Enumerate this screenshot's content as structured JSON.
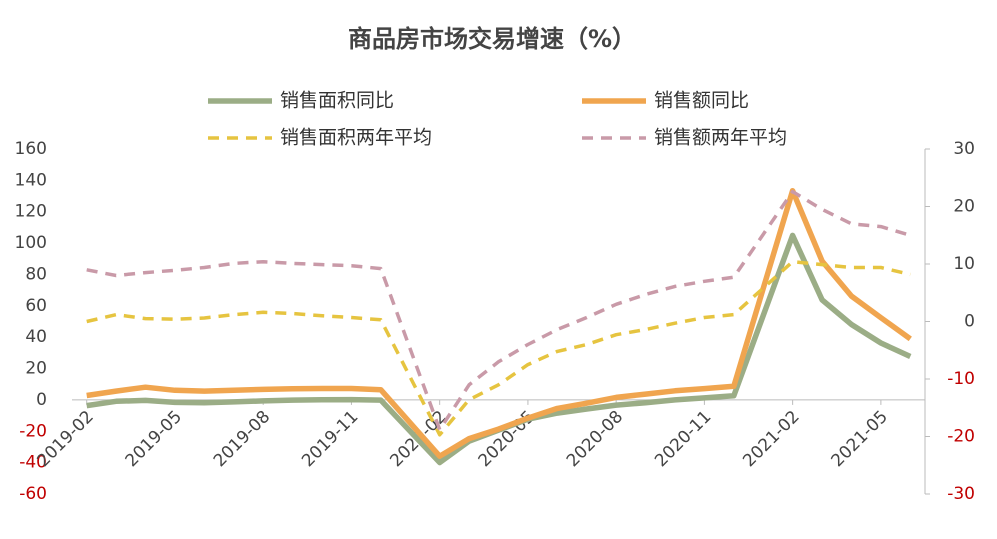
{
  "chart_data": {
    "type": "line",
    "title": "商品房市场交易增速（%）",
    "categories": [
      "2019-02",
      null,
      null,
      "2019-05",
      null,
      null,
      "2019-08",
      null,
      null,
      "2019-11",
      null,
      null,
      "2020-02",
      null,
      null,
      "2020-05",
      null,
      null,
      "2020-08",
      null,
      null,
      "2020-11",
      null,
      null,
      "2021-02",
      null,
      null,
      "2021-05",
      null
    ],
    "series": [
      {
        "name": "销售面积同比",
        "color": "#9bad86",
        "dash": false,
        "values": [
          -3.6,
          -0.9,
          -0.3,
          -1.6,
          -1.8,
          -1.3,
          -0.6,
          -0.1,
          0.1,
          0.2,
          -0.1,
          null,
          -39.9,
          -26.3,
          -19.3,
          -12.3,
          -8.4,
          -5.8,
          -3.3,
          -1.8,
          0.0,
          1.3,
          2.6,
          null,
          104.9,
          63.8,
          48.1,
          36.3,
          27.7
        ]
      },
      {
        "name": "销售额同比",
        "color": "#f0a54f",
        "dash": false,
        "values": [
          2.8,
          5.6,
          8.1,
          6.1,
          5.6,
          6.2,
          6.7,
          7.1,
          7.3,
          7.3,
          6.5,
          null,
          -35.9,
          -24.7,
          -18.6,
          -11.6,
          -5.4,
          -2.1,
          1.6,
          3.7,
          5.8,
          7.2,
          8.7,
          null,
          133.4,
          88.5,
          66.2,
          52.4,
          38.9
        ]
      },
      {
        "name": "销售面积两年平均",
        "color": "#e6c440",
        "dash": true,
        "axis": "y2",
        "values": [
          0.0,
          1.2,
          0.5,
          0.4,
          0.6,
          1.2,
          1.6,
          1.4,
          1.0,
          0.7,
          0.3,
          null,
          -19.7,
          -13.6,
          -11.0,
          -7.5,
          -5.2,
          -4.0,
          -2.3,
          -1.4,
          -0.3,
          0.7,
          1.2,
          null,
          10.4,
          9.9,
          9.4,
          9.4,
          8.2
        ]
      },
      {
        "name": "销售额两年平均",
        "color": "#c99aa8",
        "dash": true,
        "axis": "y2",
        "values": [
          9.0,
          8.0,
          8.5,
          8.9,
          9.4,
          10.1,
          10.4,
          10.1,
          9.9,
          9.7,
          9.2,
          null,
          -18.8,
          -11.0,
          -7.0,
          -4.0,
          -1.4,
          0.7,
          3.0,
          4.7,
          6.1,
          7.0,
          7.7,
          null,
          22.6,
          19.5,
          17.0,
          16.5,
          15.0
        ]
      }
    ],
    "span_gaps": true,
    "ylim": [
      -60,
      160
    ],
    "yticks": [
      -60,
      -40,
      -20,
      0,
      20,
      40,
      60,
      80,
      100,
      120,
      140,
      160
    ],
    "y2lim": [
      -30,
      30
    ],
    "y2ticks": [
      -30,
      -20,
      -10,
      0,
      10,
      20,
      30
    ],
    "negative_tick_color": "#c00000",
    "grid": false
  }
}
